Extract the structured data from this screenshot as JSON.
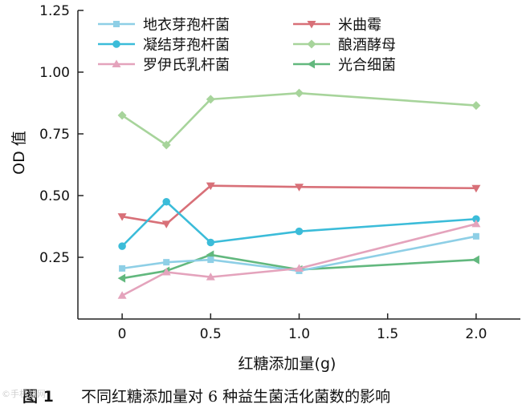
{
  "chart_data": {
    "type": "line",
    "title": "",
    "xlabel": "红糖添加量(g)",
    "ylabel": "OD 值",
    "xlim": [
      -0.25,
      2.25
    ],
    "ylim": [
      0.0,
      1.25
    ],
    "xticks": [
      0,
      0.5,
      1.0,
      1.5,
      2.0
    ],
    "xtick_labels": [
      "0",
      "0.5",
      "1.0",
      "1.5",
      "2.0"
    ],
    "yticks": [
      0.25,
      0.5,
      0.75,
      1.0,
      1.25
    ],
    "ytick_labels": [
      "0.25",
      "0.50",
      "0.75",
      "1.00",
      "1.25"
    ],
    "x": [
      0,
      0.25,
      0.5,
      1.0,
      2.0
    ],
    "grid": false,
    "legend_position": "top",
    "series": [
      {
        "name": "地衣芽孢杆菌",
        "marker": "square",
        "color": "#8ecfe6",
        "values": [
          0.205,
          0.23,
          0.24,
          0.195,
          0.335
        ]
      },
      {
        "name": "米曲霉",
        "marker": "triangle-down",
        "color": "#d87078",
        "values": [
          0.415,
          0.385,
          0.54,
          0.535,
          0.53
        ]
      },
      {
        "name": "凝结芽孢杆菌",
        "marker": "circle",
        "color": "#3bbcd9",
        "values": [
          0.295,
          0.475,
          0.31,
          0.355,
          0.405
        ]
      },
      {
        "name": "酿酒酵母",
        "marker": "diamond",
        "color": "#a7d49b",
        "values": [
          0.825,
          0.705,
          0.89,
          0.915,
          0.865
        ]
      },
      {
        "name": "罗伊氏乳杆菌",
        "marker": "triangle-up",
        "color": "#e4a3bc",
        "values": [
          0.095,
          0.19,
          0.17,
          0.205,
          0.385
        ]
      },
      {
        "name": "光合细菌",
        "marker": "triangle-left",
        "color": "#62b87e",
        "values": [
          0.165,
          0.195,
          0.26,
          0.2,
          0.24
        ]
      }
    ]
  },
  "caption": {
    "figure_label": "图 1",
    "text": "不同红糖添加量对 6 种益生菌活化菌数的影响"
  },
  "watermark": "©手机知网"
}
